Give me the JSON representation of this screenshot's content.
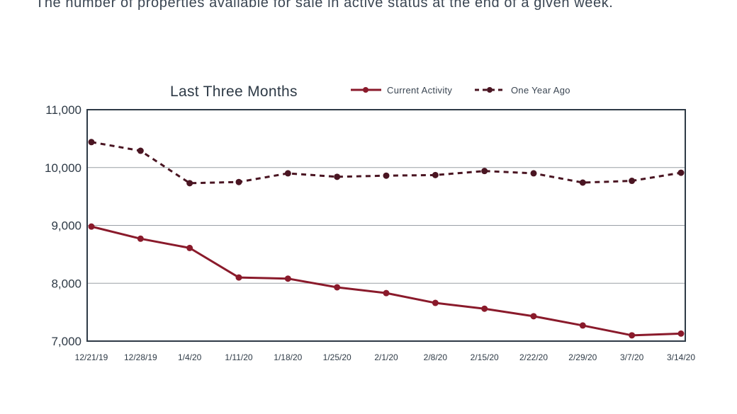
{
  "caption": "The number of properties available for sale in active status at the end of a given week.",
  "colors": {
    "current": "#8a1a2b",
    "previous": "#4a1522",
    "frame": "#2e3a46",
    "grid": "#9aa0a6"
  },
  "chart_data": {
    "type": "line",
    "title": "Last Three Months",
    "xlabel": "",
    "ylabel": "",
    "categories": [
      "12/21/19",
      "12/28/19",
      "1/4/20",
      "1/11/20",
      "1/18/20",
      "1/25/20",
      "2/1/20",
      "2/8/20",
      "2/15/20",
      "2/22/20",
      "2/29/20",
      "3/7/20",
      "3/14/20"
    ],
    "ylim": [
      7000,
      11000
    ],
    "yticks": [
      7000,
      8000,
      9000,
      10000,
      11000
    ],
    "ytick_labels": [
      "7,000",
      "8,000",
      "9,000",
      "10,000",
      "11,000"
    ],
    "grid": true,
    "legend_position": "top-right",
    "series": [
      {
        "name": "Current Activity",
        "style": "solid",
        "values": [
          8980,
          8770,
          8610,
          8100,
          8080,
          7930,
          7830,
          7660,
          7560,
          7430,
          7270,
          7100,
          7130
        ]
      },
      {
        "name": "One Year Ago",
        "style": "dashed",
        "values": [
          10440,
          10290,
          9730,
          9750,
          9900,
          9840,
          9860,
          9870,
          9940,
          9900,
          9740,
          9770,
          9910
        ]
      }
    ]
  }
}
